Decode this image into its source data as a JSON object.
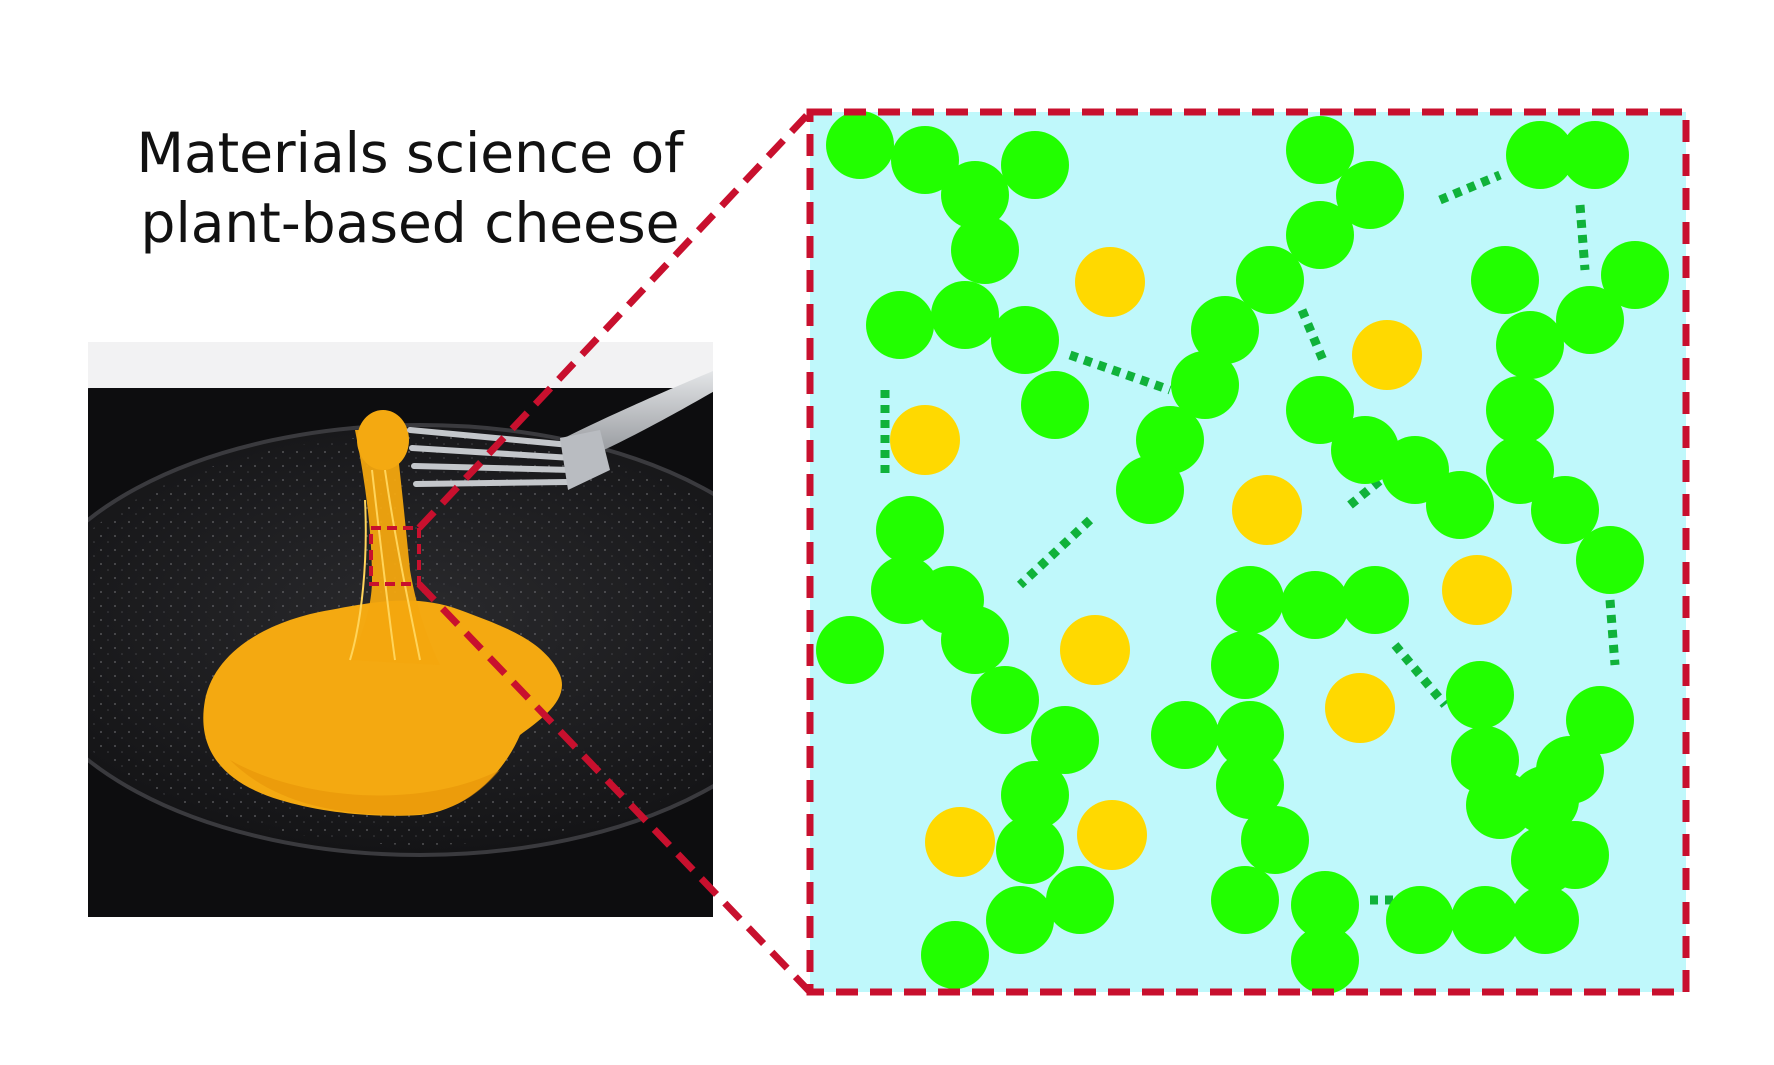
{
  "title": {
    "line1": "Materials science of",
    "line2": "plant-based cheese"
  },
  "colors": {
    "background": "#ffffff",
    "zoom_box_border": "#c8102e",
    "matrix_fill": "#bff8fb",
    "polymer_bead": "#22ff00",
    "fat_droplet": "#ffd900",
    "crosslink": "#10b23a",
    "plate": "#1c1c1e",
    "cheese": "#f4a911",
    "fork": "#b9bcc1"
  },
  "photo": {
    "description_icon": "cheese-stretch-photo",
    "highlight": "zoom-region-marker"
  },
  "legend": []
}
